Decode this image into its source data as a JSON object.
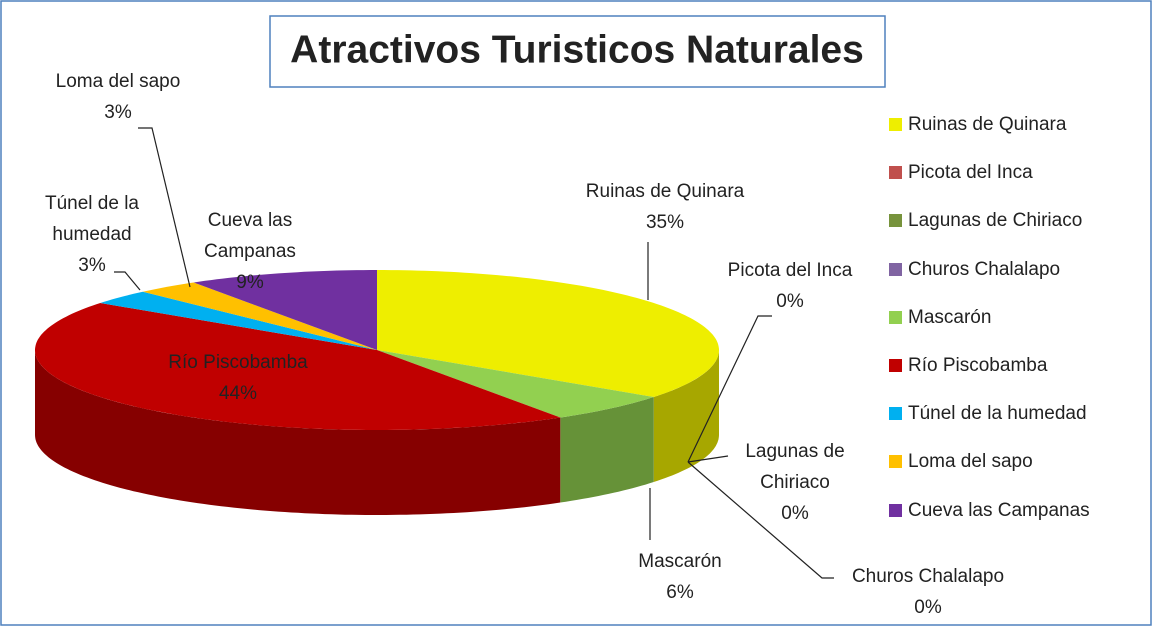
{
  "chart_data": {
    "type": "pie3d",
    "title": "Atractivos Turisticos Naturales",
    "categories": [
      "Ruinas de Quinara",
      "Picota del Inca",
      "Lagunas de Chiriaco",
      "Churos Chalalapo",
      "Mascarón",
      "Río Piscobamba",
      "Túnel de la humedad",
      "Loma del sapo",
      "Cueva las Campanas"
    ],
    "values": [
      35,
      0,
      0,
      0,
      6,
      44,
      3,
      3,
      9
    ],
    "value_labels": [
      "35%",
      "0%",
      "0%",
      "0%",
      "6%",
      "44%",
      "3%",
      "3%",
      "9%"
    ],
    "colors": [
      "#eeee00",
      "#c0504d",
      "#77933c",
      "#8064a2",
      "#92d050",
      "#c00000",
      "#00b0f0",
      "#ffc000",
      "#7030a0"
    ],
    "legend": "right"
  }
}
